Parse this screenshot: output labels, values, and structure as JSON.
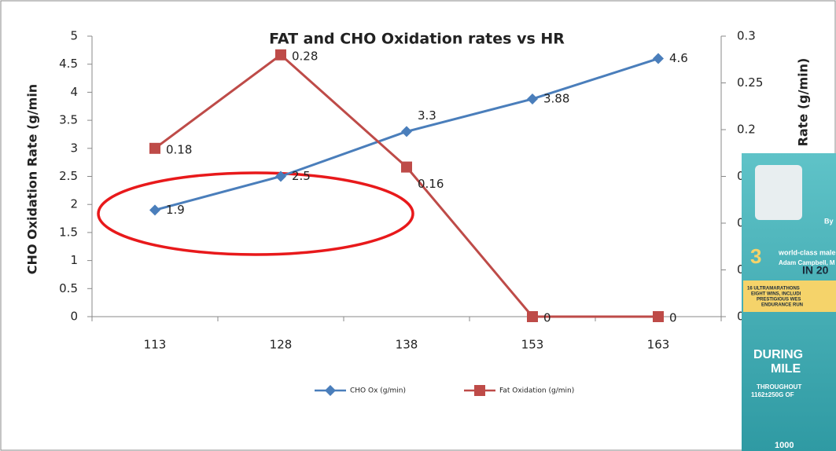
{
  "chart_data": {
    "type": "line",
    "title": "FAT and CHO Oxidation rates vs HR",
    "ylabel": "CHO Oxidation Rate (g/min",
    "y2label": "Rate (g/min)",
    "categories": [
      "113",
      "128",
      "138",
      "153",
      "163"
    ],
    "ylim": [
      0,
      5
    ],
    "yticks": [
      0,
      0.5,
      1,
      1.5,
      2,
      2.5,
      3,
      3.5,
      4,
      4.5,
      5
    ],
    "y2lim": [
      0,
      0.3
    ],
    "y2ticks": [
      0,
      0.05,
      0.1,
      0.15,
      0.2,
      0.25,
      0.3
    ],
    "series": [
      {
        "name": "CHO Ox (g/min)",
        "color": "#4a7ebb",
        "marker": "diamond",
        "values": [
          1.9,
          2.5,
          3.3,
          3.88,
          4.6
        ]
      },
      {
        "name": "Fat Oxidation (g/min)",
        "color": "#be4b48",
        "marker": "square",
        "axis": "y2",
        "values": [
          0.18,
          0.28,
          0.16,
          0,
          0
        ]
      }
    ]
  },
  "overlay": {
    "texts": [
      "By",
      "3",
      "world-class male",
      "Adam Campbell, M",
      "IN 20",
      "16 ULTRAMARATHONS",
      "EIGHT WINS, INCLUDI",
      "PRESTIGIOUS WES",
      "ENDURANCE RUN",
      "DURING",
      "MILE",
      "THROUGHOUT",
      "1162±250G OF",
      "1000"
    ]
  }
}
